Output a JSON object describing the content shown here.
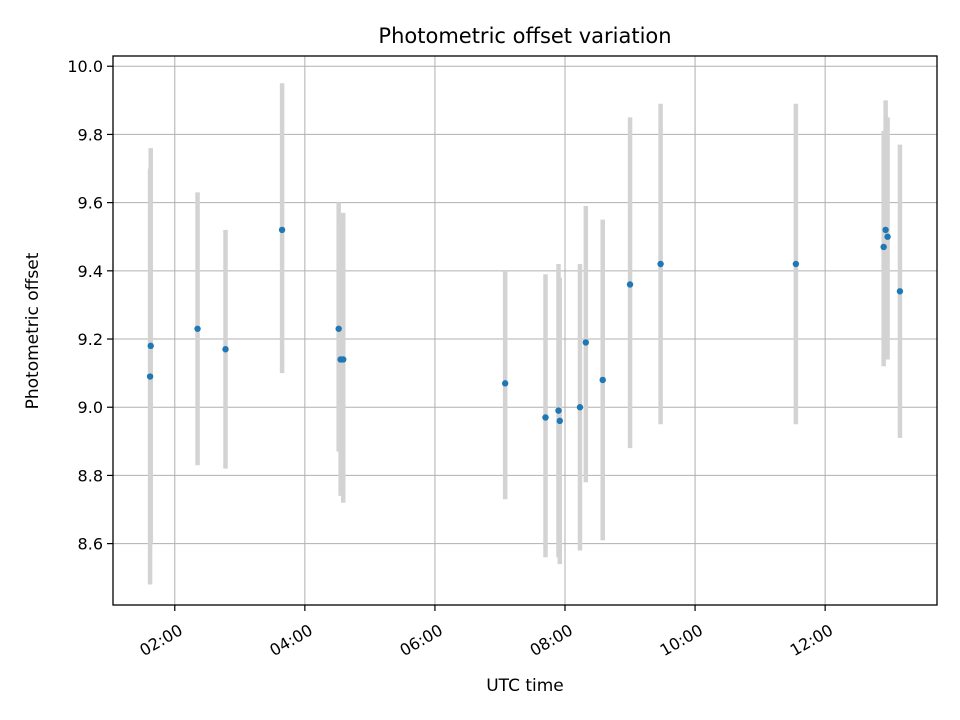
{
  "chart_data": {
    "type": "scatter",
    "title": "Photometric offset variation",
    "xlabel": "UTC time",
    "ylabel": "Photometric offset",
    "xlim": [
      1.05,
      13.72
    ],
    "ylim": [
      8.42,
      10.03
    ],
    "grid": true,
    "x_ticks": [
      {
        "value": 2,
        "label": "02:00"
      },
      {
        "value": 4,
        "label": "04:00"
      },
      {
        "value": 6,
        "label": "06:00"
      },
      {
        "value": 8,
        "label": "08:00"
      },
      {
        "value": 10,
        "label": "10:00"
      },
      {
        "value": 12,
        "label": "12:00"
      }
    ],
    "y_ticks": [
      {
        "value": 8.6,
        "label": "8.6"
      },
      {
        "value": 8.8,
        "label": "8.8"
      },
      {
        "value": 9.0,
        "label": "9.0"
      },
      {
        "value": 9.2,
        "label": "9.2"
      },
      {
        "value": 9.4,
        "label": "9.4"
      },
      {
        "value": 9.6,
        "label": "9.6"
      },
      {
        "value": 9.8,
        "label": "9.8"
      },
      {
        "value": 10.0,
        "label": "10.0"
      }
    ],
    "colors": {
      "marker": "#1f77b4",
      "errorbar": "#d3d3d3",
      "grid": "#b0b0b0",
      "axes": "#000000"
    },
    "points": [
      {
        "x": 1.62,
        "y": 9.09,
        "ylow": 8.48,
        "yhigh": 9.7
      },
      {
        "x": 1.63,
        "y": 9.18,
        "ylow": 8.6,
        "yhigh": 9.76
      },
      {
        "x": 2.35,
        "y": 9.23,
        "ylow": 8.83,
        "yhigh": 9.63
      },
      {
        "x": 2.78,
        "y": 9.17,
        "ylow": 8.82,
        "yhigh": 9.52
      },
      {
        "x": 3.65,
        "y": 9.52,
        "ylow": 9.1,
        "yhigh": 9.95
      },
      {
        "x": 4.52,
        "y": 9.23,
        "ylow": 8.87,
        "yhigh": 9.6
      },
      {
        "x": 4.55,
        "y": 9.14,
        "ylow": 8.74,
        "yhigh": 9.55
      },
      {
        "x": 4.59,
        "y": 9.14,
        "ylow": 8.72,
        "yhigh": 9.57
      },
      {
        "x": 7.08,
        "y": 9.07,
        "ylow": 8.73,
        "yhigh": 9.4
      },
      {
        "x": 7.7,
        "y": 8.97,
        "ylow": 8.56,
        "yhigh": 9.39
      },
      {
        "x": 7.9,
        "y": 8.99,
        "ylow": 8.56,
        "yhigh": 9.42
      },
      {
        "x": 7.92,
        "y": 8.96,
        "ylow": 8.54,
        "yhigh": 9.38
      },
      {
        "x": 8.23,
        "y": 9.0,
        "ylow": 8.58,
        "yhigh": 9.42
      },
      {
        "x": 8.32,
        "y": 9.19,
        "ylow": 8.78,
        "yhigh": 9.59
      },
      {
        "x": 8.58,
        "y": 9.08,
        "ylow": 8.61,
        "yhigh": 9.55
      },
      {
        "x": 9.0,
        "y": 9.36,
        "ylow": 8.88,
        "yhigh": 9.85
      },
      {
        "x": 9.47,
        "y": 9.42,
        "ylow": 8.95,
        "yhigh": 9.89
      },
      {
        "x": 11.55,
        "y": 9.42,
        "ylow": 8.95,
        "yhigh": 9.89
      },
      {
        "x": 12.9,
        "y": 9.47,
        "ylow": 9.12,
        "yhigh": 9.81
      },
      {
        "x": 12.93,
        "y": 9.52,
        "ylow": 9.14,
        "yhigh": 9.9
      },
      {
        "x": 12.96,
        "y": 9.5,
        "ylow": 9.14,
        "yhigh": 9.85
      },
      {
        "x": 13.15,
        "y": 9.34,
        "ylow": 8.91,
        "yhigh": 9.77
      }
    ]
  }
}
